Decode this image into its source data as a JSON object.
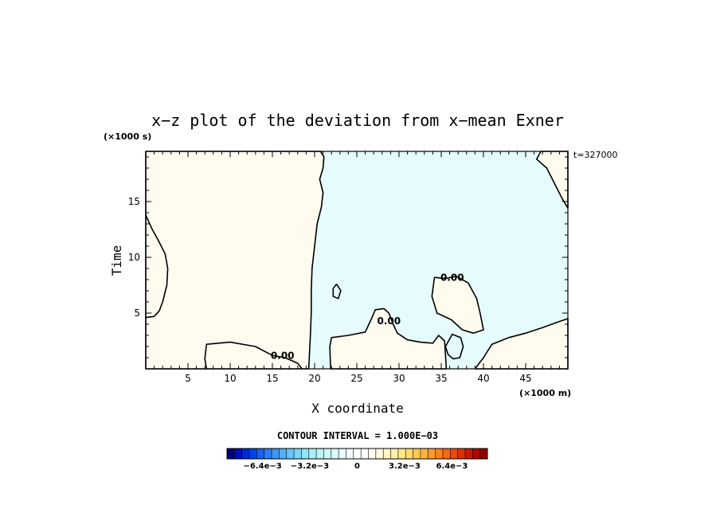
{
  "chart_data": {
    "type": "heatmap",
    "title": "x−z plot of the deviation from x−mean Exner",
    "xlabel": "X coordinate",
    "ylabel": "Time",
    "x_unit": "(×1000 m)",
    "y_unit": "(×1000 s)",
    "time_label": "t=327000",
    "xlim": [
      0,
      50
    ],
    "ylim": [
      0,
      19.5
    ],
    "x_ticks": [
      5,
      10,
      15,
      20,
      25,
      30,
      35,
      40,
      45
    ],
    "x_tick_labels": [
      "5",
      "10",
      "15",
      "20",
      "25",
      "30",
      "35",
      "40",
      "45"
    ],
    "y_ticks": [
      5,
      10,
      15
    ],
    "y_tick_labels": [
      "5",
      "10",
      "15"
    ],
    "contour_interval_label": "CONTOUR INTERVAL = 1.000E−03",
    "contour_labels": [
      {
        "text": "0.00",
        "x": 16.2,
        "y": 0.9
      },
      {
        "text": "0.00",
        "x": 28.8,
        "y": 4.0
      },
      {
        "text": "0.00",
        "x": 36.3,
        "y": 7.9
      }
    ],
    "regions": [
      {
        "sign": "positive",
        "color": "#fffbef",
        "outline_xy": [
          [
            0,
            19.5
          ],
          [
            20.7,
            19.5
          ],
          [
            21.1,
            19.0
          ],
          [
            21.0,
            18.0
          ],
          [
            20.6,
            17.0
          ],
          [
            21.0,
            15.8
          ],
          [
            20.8,
            14.5
          ],
          [
            20.3,
            13.0
          ],
          [
            20.0,
            11.0
          ],
          [
            19.7,
            9.0
          ],
          [
            19.6,
            7.0
          ],
          [
            19.6,
            5.0
          ],
          [
            19.5,
            3.0
          ],
          [
            19.3,
            0
          ],
          [
            7.2,
            0
          ],
          [
            7.0,
            0.9
          ],
          [
            7.2,
            2.2
          ],
          [
            10.0,
            2.4
          ],
          [
            13.0,
            2.0
          ],
          [
            15.0,
            1.2
          ],
          [
            16.5,
            1.0
          ],
          [
            18.0,
            0.5
          ],
          [
            18.5,
            0
          ],
          [
            0,
            0
          ]
        ]
      },
      {
        "sign": "positive",
        "color": "#fffbef",
        "outline_xy": [
          [
            21.9,
            0
          ],
          [
            21.8,
            2.0
          ],
          [
            22.0,
            2.8
          ],
          [
            24.0,
            3.0
          ],
          [
            26.0,
            3.3
          ],
          [
            26.8,
            4.6
          ],
          [
            27.2,
            5.3
          ],
          [
            28.2,
            5.4
          ],
          [
            28.8,
            5.0
          ],
          [
            29.3,
            4.0
          ],
          [
            29.8,
            3.2
          ],
          [
            31.0,
            2.6
          ],
          [
            32.5,
            2.4
          ],
          [
            34.0,
            2.3
          ],
          [
            34.7,
            3.0
          ],
          [
            35.4,
            2.5
          ],
          [
            35.6,
            0
          ]
        ]
      },
      {
        "sign": "positive",
        "color": "#fffbef",
        "outline_xy": [
          [
            34.2,
            8.2
          ],
          [
            35.5,
            8.1
          ],
          [
            36.8,
            8.3
          ],
          [
            38.2,
            7.7
          ],
          [
            39.2,
            6.3
          ],
          [
            39.6,
            5.0
          ],
          [
            40.0,
            3.5
          ],
          [
            38.8,
            3.2
          ],
          [
            37.5,
            3.5
          ],
          [
            36.2,
            4.4
          ],
          [
            34.5,
            5.0
          ],
          [
            33.9,
            6.5
          ]
        ]
      },
      {
        "sign": "positive",
        "color": "#fffbef",
        "outline_xy": [
          [
            39.0,
            0
          ],
          [
            40.0,
            1.0
          ],
          [
            41.0,
            2.2
          ],
          [
            43.0,
            2.8
          ],
          [
            45.0,
            3.2
          ],
          [
            47.0,
            3.7
          ],
          [
            48.8,
            4.2
          ],
          [
            50,
            4.5
          ],
          [
            50,
            0
          ]
        ]
      },
      {
        "sign": "positive",
        "color": "#fffbef",
        "outline_xy": [
          [
            46.8,
            19.5
          ],
          [
            46.3,
            18.8
          ],
          [
            47.5,
            18.0
          ],
          [
            48.5,
            16.5
          ],
          [
            49.3,
            15.3
          ],
          [
            50,
            14.4
          ],
          [
            50,
            19.5
          ]
        ]
      },
      {
        "sign": "negative",
        "color": "#e4fafa",
        "outline_xy": [
          [
            35.5,
            2.0
          ],
          [
            36.3,
            3.1
          ],
          [
            37.3,
            2.8
          ],
          [
            37.6,
            2.0
          ],
          [
            37.2,
            1.0
          ],
          [
            36.4,
            0.9
          ],
          [
            35.8,
            1.3
          ]
        ]
      }
    ],
    "contour_lines": [
      {
        "level": 0,
        "xy": [
          [
            0,
            13.8
          ],
          [
            0.7,
            12.6
          ],
          [
            1.5,
            11.5
          ],
          [
            2.3,
            10.3
          ],
          [
            2.6,
            9.0
          ],
          [
            2.5,
            7.5
          ],
          [
            2.0,
            6.0
          ],
          [
            1.6,
            5.2
          ],
          [
            1.0,
            4.7
          ],
          [
            0,
            4.6
          ]
        ]
      },
      {
        "level": 0,
        "xy": [
          [
            22.6,
            7.6
          ],
          [
            23.1,
            7.0
          ],
          [
            22.8,
            6.3
          ],
          [
            22.2,
            6.5
          ],
          [
            22.2,
            7.2
          ],
          [
            22.6,
            7.6
          ]
        ]
      }
    ],
    "colorbar": {
      "min": -0.0088,
      "max": 0.0088,
      "ticks": [
        -0.0064,
        -0.0032,
        0,
        0.0032,
        0.0064
      ],
      "tick_labels": [
        "−6.4e−3",
        "−3.2e−3",
        "0",
        "3.2e−3",
        "6.4e−3"
      ],
      "colors": [
        "#00007a",
        "#0010b4",
        "#0028dc",
        "#0042ee",
        "#1860f4",
        "#2a7cf6",
        "#3e96f6",
        "#52aef6",
        "#66c4f6",
        "#7cd6f8",
        "#92e4f8",
        "#a8eef8",
        "#bcf4fa",
        "#cef8fa",
        "#def9fb",
        "#ebfbfb",
        "#f4fcfc",
        "#fbfefe",
        "#fffffb",
        "#fffef0",
        "#fffbdc",
        "#fff6c4",
        "#fff0a8",
        "#ffe68a",
        "#ffd96c",
        "#ffc850",
        "#ffb43a",
        "#ff9c28",
        "#ff8218",
        "#f8660e",
        "#ec4a06",
        "#dc3000",
        "#c81800",
        "#b00800",
        "#940000"
      ]
    }
  }
}
